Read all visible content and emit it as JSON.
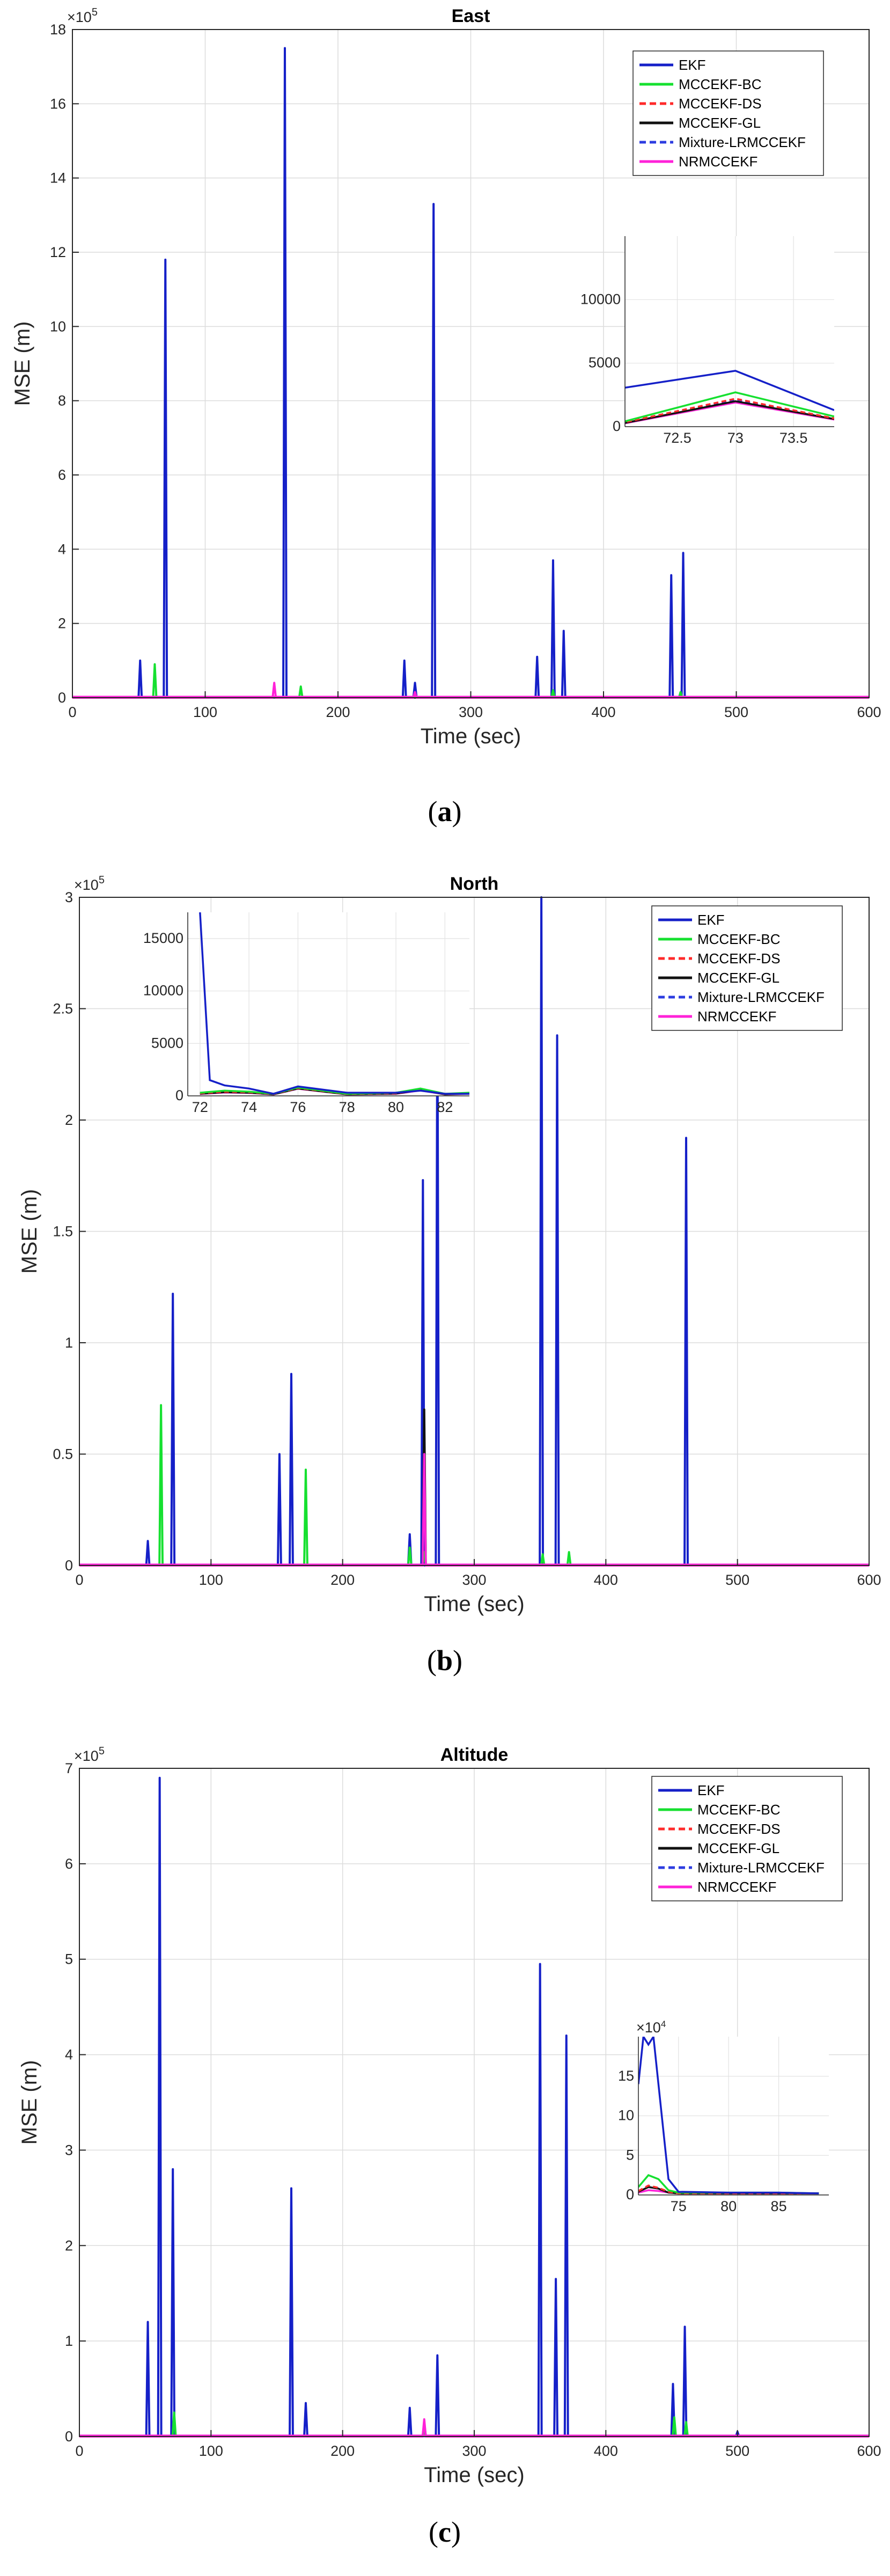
{
  "figure": {
    "captions": [
      "(a)",
      "(b)",
      "(c)"
    ]
  },
  "style": {
    "colors": {
      "EKF": "#1520c8",
      "MCCEKF-BC": "#16e030",
      "MCCEKF-DS": "#ff2a2a",
      "MCCEKF-GL": "#111111",
      "Mixture-LRMCCEKF": "#2d3de0",
      "NRMCCEKF": "#ff22d8"
    },
    "dashed_series": [
      "MCCEKF-DS",
      "Mixture-LRMCCEKF"
    ]
  },
  "chart_data": [
    {
      "type": "line",
      "title": "East",
      "xlabel": "Time (sec)",
      "ylabel": "MSE (m)",
      "y_multiplier": "×10^5",
      "xlim": [
        0,
        600
      ],
      "ylim": [
        0,
        18
      ],
      "xticks": [
        0,
        100,
        200,
        300,
        400,
        500,
        600
      ],
      "yticks": [
        0,
        2,
        4,
        6,
        8,
        10,
        12,
        14,
        16,
        18
      ],
      "grid": true,
      "legend_position": "top-right",
      "legend": [
        "EKF",
        "MCCEKF-BC",
        "MCCEKF-DS",
        "MCCEKF-GL",
        "Mixture-LRMCCEKF",
        "NRMCCEKF"
      ],
      "series": [
        {
          "name": "EKF",
          "spikes": [
            [
              51,
              1.0
            ],
            [
              70,
              11.8
            ],
            [
              160,
              17.5
            ],
            [
              250,
              1.0
            ],
            [
              258,
              0.4
            ],
            [
              272,
              13.3
            ],
            [
              350,
              1.1
            ],
            [
              362,
              3.7
            ],
            [
              370,
              1.8
            ],
            [
              451,
              3.3
            ],
            [
              460,
              3.9
            ]
          ]
        },
        {
          "name": "MCCEKF-BC",
          "spikes": [
            [
              62,
              0.9
            ],
            [
              172,
              0.3
            ],
            [
              362,
              0.2
            ],
            [
              458,
              0.15
            ]
          ]
        },
        {
          "name": "MCCEKF-DS",
          "spikes": []
        },
        {
          "name": "MCCEKF-GL",
          "spikes": []
        },
        {
          "name": "Mixture-LRMCCEKF",
          "spikes": []
        },
        {
          "name": "NRMCCEKF",
          "spikes": [
            [
              152,
              0.4
            ],
            [
              258,
              0.15
            ]
          ]
        }
      ],
      "inset": {
        "xlim": [
          72.05,
          73.85
        ],
        "ylim": [
          0,
          15000
        ],
        "xticks": [
          72.5,
          73,
          73.5
        ],
        "yticks": [
          0,
          5000,
          10000
        ],
        "grid": true,
        "series": [
          {
            "name": "EKF",
            "x": [
              72,
              73,
              73.85
            ],
            "y": [
              3000,
              4400,
              1300
            ]
          },
          {
            "name": "MCCEKF-BC",
            "x": [
              72,
              73,
              73.85
            ],
            "y": [
              300,
              2700,
              800
            ]
          },
          {
            "name": "MCCEKF-DS",
            "x": [
              72,
              73,
              73.85
            ],
            "y": [
              250,
              2200,
              650
            ]
          },
          {
            "name": "MCCEKF-GL",
            "x": [
              72,
              73,
              73.85
            ],
            "y": [
              200,
              2000,
              600
            ]
          },
          {
            "name": "Mixture-LRMCCEKF",
            "x": [
              72,
              73,
              73.85
            ],
            "y": [
              220,
              2100,
              620
            ]
          },
          {
            "name": "NRMCCEKF",
            "x": [
              72,
              73,
              73.85
            ],
            "y": [
              180,
              1900,
              560
            ]
          }
        ]
      }
    },
    {
      "type": "line",
      "title": "North",
      "xlabel": "Time (sec)",
      "ylabel": "MSE (m)",
      "y_multiplier": "×10^5",
      "xlim": [
        0,
        600
      ],
      "ylim": [
        0,
        3
      ],
      "xticks": [
        0,
        100,
        200,
        300,
        400,
        500,
        600
      ],
      "yticks": [
        0,
        0.5,
        1,
        1.5,
        2,
        2.5,
        3
      ],
      "grid": true,
      "legend_position": "top-right",
      "legend": [
        "EKF",
        "MCCEKF-BC",
        "MCCEKF-DS",
        "MCCEKF-GL",
        "Mixture-LRMCCEKF",
        "NRMCCEKF"
      ],
      "series": [
        {
          "name": "EKF",
          "spikes": [
            [
              52,
              0.11
            ],
            [
              71,
              1.22
            ],
            [
              152,
              0.5
            ],
            [
              161,
              0.86
            ],
            [
              251,
              0.14
            ],
            [
              261,
              1.73
            ],
            [
              272,
              2.6
            ],
            [
              351,
              3.0
            ],
            [
              363,
              2.38
            ],
            [
              461,
              1.92
            ]
          ]
        },
        {
          "name": "MCCEKF-BC",
          "spikes": [
            [
              62,
              0.72
            ],
            [
              172,
              0.43
            ],
            [
              251,
              0.08
            ],
            [
              262,
              0.06
            ],
            [
              352,
              0.05
            ],
            [
              372,
              0.06
            ]
          ]
        },
        {
          "name": "MCCEKF-DS",
          "spikes": []
        },
        {
          "name": "MCCEKF-GL",
          "spikes": [
            [
              262,
              0.7
            ]
          ]
        },
        {
          "name": "Mixture-LRMCCEKF",
          "spikes": []
        },
        {
          "name": "NRMCCEKF",
          "spikes": [
            [
              262,
              0.5
            ]
          ]
        }
      ],
      "inset": {
        "xlim": [
          71.5,
          83
        ],
        "ylim": [
          0,
          17500
        ],
        "xticks": [
          72,
          74,
          76,
          78,
          80,
          82
        ],
        "yticks": [
          0,
          5000,
          10000,
          15000
        ],
        "grid": true,
        "series": [
          {
            "name": "EKF",
            "x": [
              72,
              72.4,
              73,
              74,
              75,
              76,
              78,
              80,
              81,
              82,
              83
            ],
            "y": [
              17500,
              1500,
              1000,
              700,
              200,
              900,
              300,
              300,
              500,
              200,
              200
            ]
          },
          {
            "name": "MCCEKF-BC",
            "x": [
              72,
              73,
              74,
              75,
              76,
              78,
              80,
              81,
              82,
              83
            ],
            "y": [
              300,
              500,
              400,
              200,
              800,
              200,
              300,
              700,
              200,
              300
            ]
          },
          {
            "name": "MCCEKF-DS",
            "x": [
              72,
              73,
              74,
              75,
              76,
              78,
              80,
              81,
              82,
              83
            ],
            "y": [
              250,
              400,
              350,
              180,
              750,
              180,
              260,
              600,
              180,
              260
            ]
          },
          {
            "name": "MCCEKF-GL",
            "x": [
              72,
              73,
              74,
              75,
              76,
              78,
              80,
              81,
              82,
              83
            ],
            "y": [
              200,
              350,
              300,
              150,
              700,
              150,
              220,
              550,
              150,
              220
            ]
          },
          {
            "name": "Mixture-LRMCCEKF",
            "x": [
              72,
              73,
              74,
              75,
              76,
              78,
              80,
              81,
              82,
              83
            ],
            "y": [
              220,
              380,
              320,
              160,
              720,
              160,
              240,
              580,
              160,
              240
            ]
          },
          {
            "name": "NRMCCEKF",
            "x": [
              72,
              73,
              74,
              75,
              76,
              78,
              80,
              81,
              82,
              83
            ],
            "y": [
              180,
              320,
              280,
              140,
              680,
              140,
              200,
              520,
              140,
              200
            ]
          }
        ]
      }
    },
    {
      "type": "line",
      "title": "Altitude",
      "xlabel": "Time (sec)",
      "ylabel": "MSE (m)",
      "y_multiplier": "×10^5",
      "xlim": [
        0,
        600
      ],
      "ylim": [
        0,
        7
      ],
      "xticks": [
        0,
        100,
        200,
        300,
        400,
        500,
        600
      ],
      "yticks": [
        0,
        1,
        2,
        3,
        4,
        5,
        6,
        7
      ],
      "grid": true,
      "legend_position": "top-right",
      "legend": [
        "EKF",
        "MCCEKF-BC",
        "MCCEKF-DS",
        "MCCEKF-GL",
        "Mixture-LRMCCEKF",
        "NRMCCEKF"
      ],
      "series": [
        {
          "name": "EKF",
          "spikes": [
            [
              52,
              1.2
            ],
            [
              61,
              6.9
            ],
            [
              71,
              2.8
            ],
            [
              161,
              2.6
            ],
            [
              172,
              0.35
            ],
            [
              251,
              0.3
            ],
            [
              262,
              0.15
            ],
            [
              272,
              0.85
            ],
            [
              350,
              4.95
            ],
            [
              362,
              1.65
            ],
            [
              370,
              4.2
            ],
            [
              451,
              0.55
            ],
            [
              460,
              1.15
            ],
            [
              500,
              0.05
            ]
          ]
        },
        {
          "name": "MCCEKF-BC",
          "spikes": [
            [
              72,
              0.25
            ],
            [
              262,
              0.05
            ],
            [
              452,
              0.2
            ],
            [
              461,
              0.15
            ]
          ]
        },
        {
          "name": "MCCEKF-DS",
          "spikes": []
        },
        {
          "name": "MCCEKF-GL",
          "spikes": []
        },
        {
          "name": "Mixture-LRMCCEKF",
          "spikes": []
        },
        {
          "name": "NRMCCEKF",
          "spikes": [
            [
              262,
              0.18
            ]
          ]
        }
      ],
      "inset": {
        "y_multiplier": "×10^4",
        "xlim": [
          71,
          90
        ],
        "ylim": [
          0,
          20
        ],
        "xticks": [
          75,
          80,
          85
        ],
        "yticks": [
          0,
          5,
          10,
          15
        ],
        "grid": true,
        "series": [
          {
            "name": "EKF",
            "x": [
              71,
              71.5,
              72,
              72.5,
              73,
              74,
              75,
              80,
              85,
              89
            ],
            "y": [
              14,
              20,
              19,
              20,
              14,
              2,
              0.4,
              0.3,
              0.3,
              0.2
            ]
          },
          {
            "name": "MCCEKF-BC",
            "x": [
              71,
              72,
              73,
              74,
              75,
              80,
              85,
              89
            ],
            "y": [
              1,
              2.5,
              2,
              0.6,
              0.3,
              0.3,
              0.3,
              0.2
            ]
          },
          {
            "name": "MCCEKF-DS",
            "x": [
              71,
              72,
              73,
              74,
              75,
              80,
              85,
              89
            ],
            "y": [
              0.5,
              1.2,
              0.9,
              0.4,
              0.2,
              0.2,
              0.2,
              0.2
            ]
          },
          {
            "name": "MCCEKF-GL",
            "x": [
              71,
              72,
              73,
              74,
              75,
              80,
              85,
              89
            ],
            "y": [
              0.4,
              1.0,
              0.8,
              0.3,
              0.2,
              0.2,
              0.2,
              0.2
            ]
          },
          {
            "name": "Mixture-LRMCCEKF",
            "x": [
              71,
              72,
              73,
              74,
              75,
              80,
              85,
              89
            ],
            "y": [
              0.45,
              1.1,
              0.85,
              0.35,
              0.2,
              0.2,
              0.2,
              0.2
            ]
          },
          {
            "name": "NRMCCEKF",
            "x": [
              71,
              72,
              73,
              74,
              75,
              80,
              85,
              89
            ],
            "y": [
              0.3,
              0.6,
              0.5,
              0.3,
              0.2,
              0.2,
              0.2,
              0.2
            ]
          }
        ]
      }
    }
  ]
}
